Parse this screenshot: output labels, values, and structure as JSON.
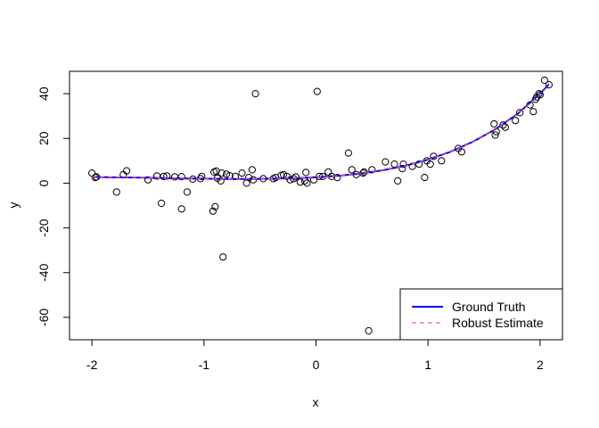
{
  "chart_data": {
    "type": "scatter",
    "title": "",
    "xlabel": "x",
    "ylabel": "y",
    "xlim": [
      -2.2,
      2.2
    ],
    "ylim": [
      -70,
      50
    ],
    "x_ticks": [
      -2,
      -1,
      0,
      1,
      2
    ],
    "x_tick_labels": [
      "-2",
      "-1",
      "0",
      "1",
      "2"
    ],
    "y_ticks": [
      -60,
      -40,
      -20,
      0,
      20,
      40
    ],
    "y_tick_labels": [
      "-60",
      "-40",
      "-20",
      "0",
      "20",
      "40"
    ],
    "grid": false,
    "legend_position": "bottom-right",
    "points": {
      "x": [
        -2.0,
        -1.97,
        -1.96,
        -1.78,
        -1.72,
        -1.69,
        -1.5,
        -1.42,
        -1.38,
        -1.36,
        -1.33,
        -1.26,
        -1.2,
        -1.2,
        -1.15,
        -1.1,
        -1.03,
        -1.02,
        -0.92,
        -0.91,
        -0.9,
        -0.89,
        -0.88,
        -0.85,
        -0.84,
        -0.83,
        -0.8,
        -0.77,
        -0.72,
        -0.66,
        -0.62,
        -0.6,
        -0.57,
        -0.56,
        -0.54,
        -0.47,
        -0.38,
        -0.36,
        -0.31,
        -0.29,
        -0.26,
        -0.23,
        -0.2,
        -0.18,
        -0.14,
        -0.1,
        -0.09,
        -0.08,
        -0.02,
        0.01,
        0.03,
        0.06,
        0.11,
        0.14,
        0.19,
        0.29,
        0.32,
        0.36,
        0.42,
        0.43,
        0.47,
        0.5,
        0.62,
        0.7,
        0.73,
        0.77,
        0.78,
        0.86,
        0.92,
        0.97,
        0.99,
        1.02,
        1.05,
        1.12,
        1.27,
        1.3,
        1.59,
        1.6,
        1.61,
        1.67,
        1.69,
        1.78,
        1.82,
        1.91,
        1.94,
        1.96,
        1.97,
        1.99,
        2.0,
        2.04,
        2.08
      ],
      "y": [
        4.5,
        2.5,
        2.8,
        -4.0,
        3.8,
        5.5,
        1.5,
        3.2,
        -9.0,
        3.0,
        3.2,
        2.8,
        -11.5,
        2.9,
        -4.0,
        1.8,
        2.0,
        3.0,
        -12.5,
        5.0,
        -10.5,
        5.4,
        2.2,
        1.0,
        4.5,
        -33.0,
        4.0,
        3.3,
        3.0,
        4.5,
        0.0,
        2.5,
        6.0,
        1.5,
        40.0,
        2.0,
        2.0,
        2.5,
        3.5,
        3.8,
        3.0,
        1.5,
        2.0,
        2.8,
        0.5,
        1.0,
        4.8,
        0.0,
        1.5,
        41.0,
        3.0,
        3.0,
        5.0,
        3.0,
        2.5,
        13.5,
        6.0,
        3.8,
        4.5,
        5.0,
        -66.0,
        6.0,
        9.5,
        8.5,
        1.0,
        6.5,
        8.5,
        7.5,
        8.5,
        2.5,
        10.0,
        8.5,
        12.0,
        10.0,
        15.5,
        14.0,
        26.5,
        21.5,
        23.0,
        26.0,
        25.0,
        28.0,
        31.5,
        35.0,
        32.0,
        37.5,
        38.5,
        40.0,
        39.5,
        46.0,
        44.0
      ]
    },
    "series": [
      {
        "name": "Ground Truth",
        "style": "solid",
        "color": "#0000ff",
        "x": [
          -2.0,
          -1.8,
          -1.6,
          -1.4,
          -1.2,
          -1.0,
          -0.8,
          -0.6,
          -0.4,
          -0.2,
          0.0,
          0.2,
          0.4,
          0.6,
          0.8,
          1.0,
          1.2,
          1.4,
          1.6,
          1.8,
          2.0,
          2.08
        ],
        "y": [
          2.8,
          2.6,
          2.5,
          2.3,
          2.1,
          2.0,
          1.9,
          1.9,
          2.0,
          2.2,
          2.6,
          3.3,
          4.3,
          5.8,
          7.8,
          10.5,
          14.0,
          18.5,
          24.0,
          31.0,
          40.0,
          44.2
        ]
      },
      {
        "name": "Robust Estimate",
        "style": "dashed",
        "color": "#ff0000",
        "x": [
          -2.0,
          -1.8,
          -1.6,
          -1.4,
          -1.2,
          -1.0,
          -0.8,
          -0.6,
          -0.4,
          -0.2,
          0.0,
          0.2,
          0.4,
          0.6,
          0.8,
          1.0,
          1.2,
          1.4,
          1.6,
          1.8,
          2.0,
          2.08
        ],
        "y": [
          2.9,
          2.7,
          2.5,
          2.3,
          2.1,
          2.0,
          1.9,
          1.9,
          2.0,
          2.2,
          2.6,
          3.3,
          4.3,
          5.8,
          7.7,
          10.4,
          13.9,
          18.4,
          23.9,
          30.8,
          39.6,
          43.8
        ]
      }
    ],
    "legend": [
      {
        "label": "Ground Truth",
        "color": "#0000ff",
        "style": "solid"
      },
      {
        "label": "Robust Estimate",
        "color": "#ff6666",
        "style": "dashed"
      }
    ]
  }
}
